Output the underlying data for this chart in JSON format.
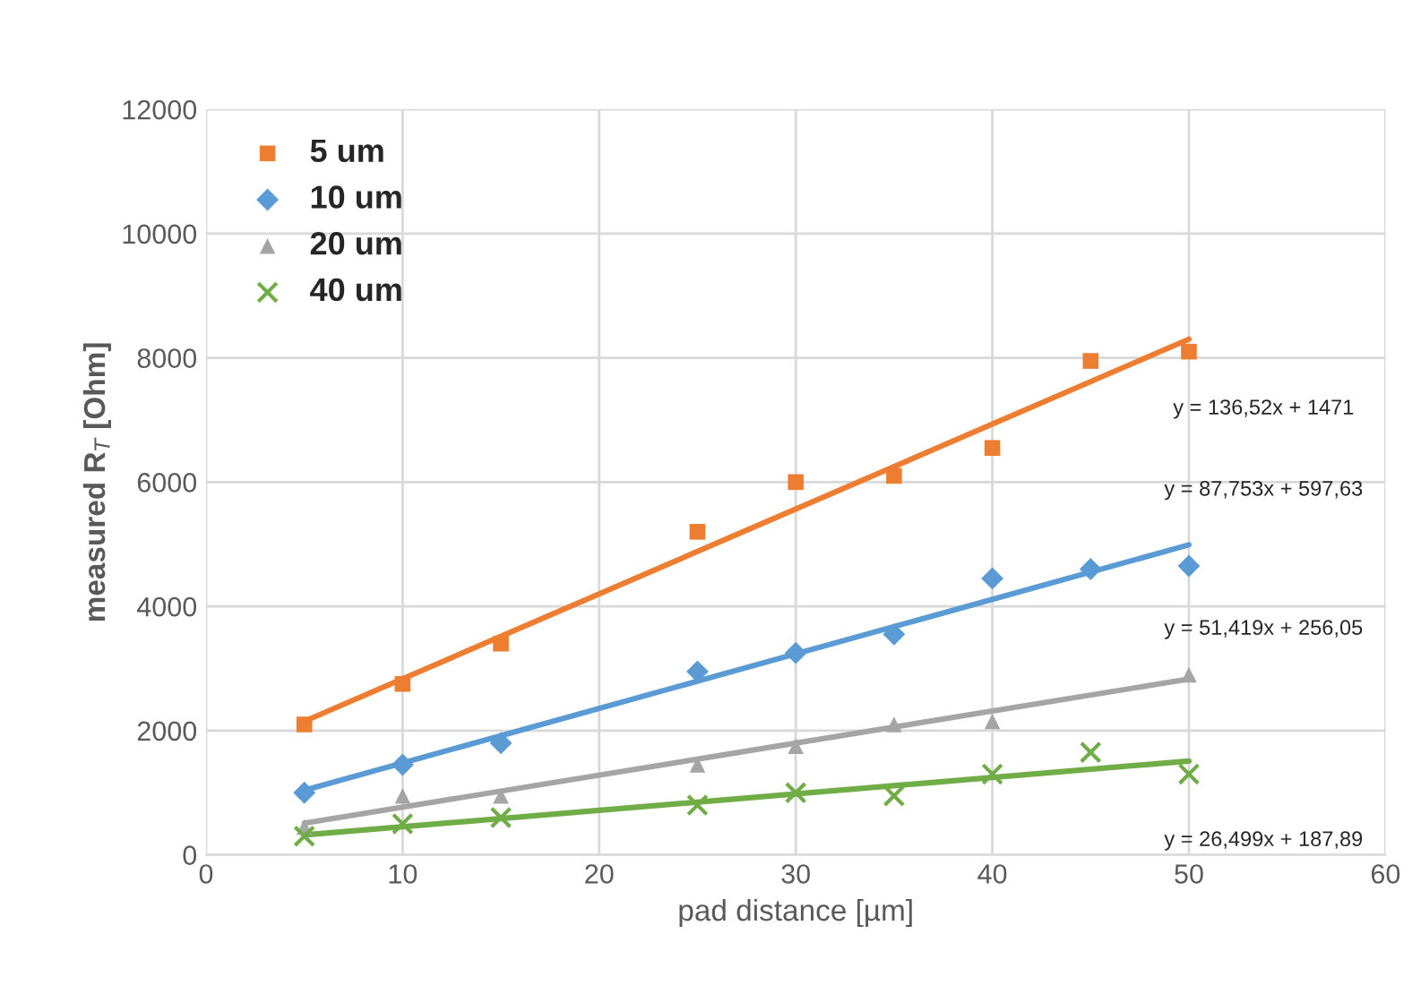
{
  "chart_data": {
    "type": "scatter",
    "xlabel": "pad distance [µm]",
    "ylabel": "measured R$_{T}$ [Ohm]",
    "xlim": [
      0,
      60
    ],
    "xticks": [
      0,
      10,
      20,
      30,
      40,
      50,
      60
    ],
    "ylim": [
      0,
      12000
    ],
    "yticks": [
      0,
      2000,
      4000,
      6000,
      8000,
      10000,
      12000
    ],
    "grid": true,
    "legend": "top left",
    "series": [
      {
        "name": "5 um",
        "color": "#ed7d31",
        "marker": "square",
        "x": [
          5,
          10,
          15,
          25,
          30,
          35,
          40,
          45,
          50
        ],
        "values": [
          2100,
          2750,
          3400,
          5200,
          6000,
          6100,
          6550,
          7950,
          8100
        ]
      },
      {
        "name": "10 um",
        "color": "#5b9bd5",
        "marker": "diamond",
        "x": [
          5,
          10,
          15,
          25,
          30,
          35,
          40,
          45,
          50
        ],
        "values": [
          1000,
          1450,
          1800,
          2950,
          3250,
          3550,
          4450,
          4600,
          4650
        ]
      },
      {
        "name": "20 um",
        "color": "#a5a5a5",
        "marker": "triangle",
        "x": [
          5,
          10,
          15,
          25,
          30,
          35,
          40,
          50
        ],
        "values": [
          450,
          950,
          950,
          1450,
          1750,
          2100,
          2150,
          2900
        ]
      },
      {
        "name": "40 um",
        "color": "#70ad47",
        "marker": "cross",
        "x": [
          5,
          10,
          15,
          25,
          30,
          35,
          40,
          45,
          50
        ],
        "values": [
          300,
          500,
          600,
          800,
          1000,
          950,
          1300,
          1650,
          1300
        ]
      },
      {
        "type": "line",
        "color": "#ed7d31",
        "marker": "none",
        "x": [
          5,
          50
        ],
        "values": [
          2150,
          8300
        ]
      },
      {
        "type": "line",
        "color": "#5b9bd5",
        "marker": "none",
        "x": [
          5,
          50
        ],
        "values": [
          1040,
          4990
        ]
      },
      {
        "type": "line",
        "color": "#a5a5a5",
        "marker": "none",
        "x": [
          5,
          50
        ],
        "values": [
          510,
          2830
        ]
      },
      {
        "type": "line",
        "color": "#70ad47",
        "marker": "none",
        "x": [
          5,
          50
        ],
        "values": [
          320,
          1510
        ]
      }
    ],
    "annotations": [
      "y = 136,52x + 1471",
      "y = 87,753x + 597,63",
      "y = 51,419x + 256,05",
      "y = 26,499x + 187,89"
    ]
  }
}
